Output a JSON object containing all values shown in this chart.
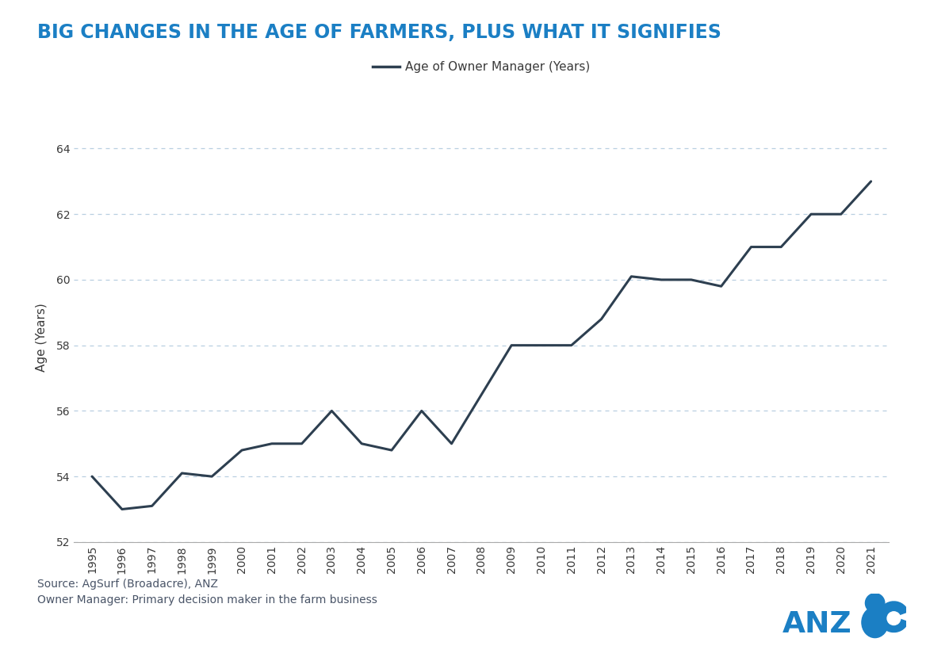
{
  "title": "BIG CHANGES IN THE AGE OF FARMERS, PLUS WHAT IT SIGNIFIES",
  "title_color": "#1b7fc4",
  "legend_label": "Age of Owner Manager (Years)",
  "ylabel": "Age (Years)",
  "source_line1": "Source: AgSurf (Broadacre), ANZ",
  "source_line2": "Owner Manager: Primary decision maker in the farm business",
  "years": [
    1995,
    1996,
    1997,
    1998,
    1999,
    2000,
    2001,
    2002,
    2003,
    2004,
    2005,
    2006,
    2007,
    2008,
    2009,
    2010,
    2011,
    2012,
    2013,
    2014,
    2015,
    2016,
    2017,
    2018,
    2019,
    2020,
    2021
  ],
  "values": [
    54.0,
    53.0,
    53.1,
    54.1,
    54.0,
    54.8,
    55.0,
    55.0,
    56.0,
    55.0,
    54.8,
    56.0,
    55.0,
    56.5,
    58.0,
    58.0,
    58.0,
    58.8,
    60.1,
    60.0,
    60.0,
    59.8,
    61.0,
    61.0,
    62.0,
    62.0,
    63.0
  ],
  "line_color": "#2d3f50",
  "line_width": 2.2,
  "grid_color": "#b8cfe0",
  "background_color": "#ffffff",
  "ylim_min": 52,
  "ylim_max": 64.5,
  "yticks": [
    52,
    54,
    56,
    58,
    60,
    62,
    64
  ],
  "anz_color": "#1b7fc4",
  "font_color_axes": "#3a3a3a",
  "font_color_source": "#4a5568",
  "title_fontsize": 17,
  "axis_label_fontsize": 11,
  "tick_fontsize": 10,
  "source_fontsize": 10,
  "legend_fontsize": 11
}
